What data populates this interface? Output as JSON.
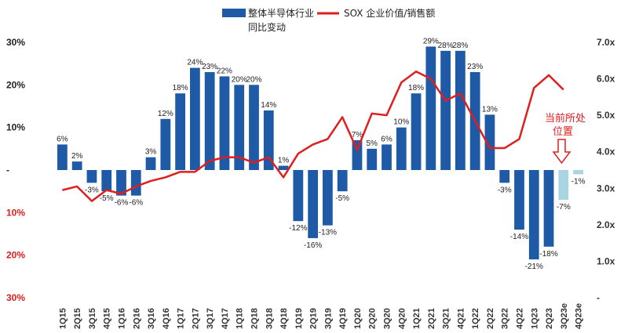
{
  "chart_data": {
    "type": "bar+line",
    "categories": [
      "1Q15",
      "2Q15",
      "3Q15",
      "4Q15",
      "1Q16",
      "2Q16",
      "3Q16",
      "4Q16",
      "1Q17",
      "2Q17",
      "3Q17",
      "4Q17",
      "1Q18",
      "2Q18",
      "3Q18",
      "4Q18",
      "1Q19",
      "2Q19",
      "3Q19",
      "4Q19",
      "1Q20",
      "2Q20",
      "3Q20",
      "4Q20",
      "1Q21",
      "2Q21",
      "3Q21",
      "4Q21",
      "1Q22",
      "2Q22",
      "3Q22",
      "4Q22",
      "1Q23",
      "2Q23",
      "3Q23e",
      "4Q23e"
    ],
    "bar_series": {
      "name": "整体半导体行业同比变动",
      "axis": "left",
      "values": [
        6,
        2,
        -3,
        -5,
        -6,
        -6,
        3,
        12,
        18,
        24,
        23,
        22,
        20,
        20,
        14,
        1,
        -12,
        -16,
        -13,
        -5,
        7,
        5,
        6,
        10,
        18,
        29,
        28,
        28,
        23,
        13,
        -3,
        -14,
        -21,
        -18,
        -7,
        -1
      ],
      "labels": [
        "6%",
        "2%",
        "-3%",
        "-5%",
        "-6%",
        "-6%",
        "3%",
        "12%",
        "18%",
        "24%",
        "23%",
        "22%",
        "20%",
        "20%",
        "14%",
        "1%",
        "-12%",
        "-16%",
        "-13%",
        "-5%",
        "7%",
        "5%",
        "6%",
        "10%",
        "18%",
        "29%",
        "28%",
        "28%",
        "23%",
        "13%",
        "-3%",
        "-14%",
        "-21%",
        "-18%",
        "-7%",
        "-1%"
      ],
      "estimated": [
        false,
        false,
        false,
        false,
        false,
        false,
        false,
        false,
        false,
        false,
        false,
        false,
        false,
        false,
        false,
        false,
        false,
        false,
        false,
        false,
        false,
        false,
        false,
        false,
        false,
        false,
        false,
        false,
        false,
        false,
        false,
        false,
        false,
        false,
        true,
        true
      ],
      "color": "#1f5aa6",
      "estimate_color": "#a9d4e2"
    },
    "line_series": {
      "name": "SOX 企业价值/销售额",
      "axis": "right",
      "color": "#e01e1e",
      "values": [
        2.95,
        3.05,
        2.65,
        2.95,
        2.85,
        3.05,
        3.2,
        3.3,
        3.45,
        3.45,
        3.75,
        3.85,
        3.85,
        3.7,
        3.85,
        3.3,
        3.95,
        4.2,
        4.35,
        4.95,
        4.05,
        5.05,
        5.0,
        5.9,
        6.2,
        6.0,
        5.4,
        5.6,
        4.85,
        4.1,
        4.1,
        4.35,
        5.75,
        6.1,
        5.7
      ]
    },
    "left_axis": {
      "min": -30,
      "max": 30,
      "ticks": [
        -30,
        -20,
        -10,
        0,
        10,
        20,
        30
      ],
      "tick_labels": [
        "30%",
        "20%",
        "10%",
        "-",
        "10%",
        "20%",
        "30%"
      ]
    },
    "right_axis": {
      "min": 0,
      "max": 7,
      "ticks": [
        0,
        1,
        2,
        3,
        4,
        5,
        6,
        7
      ],
      "tick_labels": [
        "-",
        "1.0x",
        "2.0x",
        "3.0x",
        "4.0x",
        "5.0x",
        "6.0x",
        "7.0x"
      ]
    },
    "legend": {
      "bar_label_line1": "整体半导体行业",
      "bar_label_line2": "同比变动",
      "line_label": "SOX 企业价值/销售额",
      "position": "top-center"
    },
    "annotation": {
      "line1": "当前所处",
      "line2": "位置",
      "color": "#e01e1e"
    }
  },
  "colors": {
    "negative_axis": "#e01e1e",
    "positive_axis": "#222222"
  }
}
